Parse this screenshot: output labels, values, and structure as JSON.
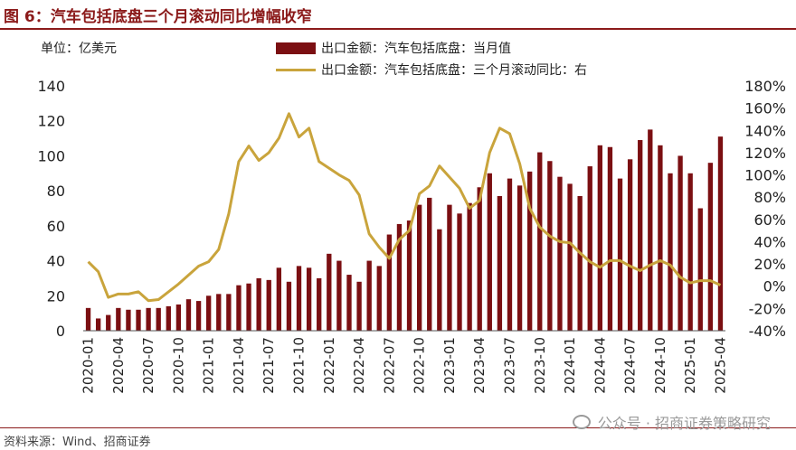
{
  "title": "图 6：汽车包括底盘三个月滚动同比增幅收窄",
  "unit_label": "单位：亿美元",
  "source": "资料来源：Wind、招商证券",
  "watermark": "公众号 · 招商证券策略研究",
  "colors": {
    "bar": "#7b0f12",
    "line": "#c9a43c",
    "accent": "#8b1a1a"
  },
  "chart_data": {
    "type": "bar",
    "series": [
      {
        "name": "出口金额：汽车包括底盘：当月值",
        "type": "bar",
        "axis": "left",
        "values": [
          13,
          7,
          9,
          13,
          12,
          12,
          13,
          13,
          14,
          15,
          18,
          17,
          20,
          21,
          21,
          26,
          27,
          30,
          29,
          36,
          28,
          37,
          36,
          30,
          44,
          40,
          32,
          28,
          40,
          37,
          55,
          61,
          63,
          72,
          76,
          58,
          72,
          67,
          73,
          82,
          90,
          77,
          87,
          83,
          91,
          102,
          97,
          88,
          84,
          77,
          94,
          106,
          105,
          87,
          98,
          109,
          115,
          106,
          90,
          100,
          90,
          70,
          96,
          111
        ]
      },
      {
        "name": "出口金额：汽车包括底盘：三个月滚动同比：右",
        "type": "line",
        "axis": "right",
        "values": [
          0.22,
          0.13,
          -0.1,
          -0.07,
          -0.07,
          -0.05,
          -0.13,
          -0.12,
          -0.05,
          0.02,
          0.1,
          0.18,
          0.22,
          0.33,
          0.65,
          1.12,
          1.26,
          1.13,
          1.2,
          1.33,
          1.55,
          1.34,
          1.42,
          1.12,
          1.06,
          1.0,
          0.95,
          0.82,
          0.47,
          0.35,
          0.25,
          0.42,
          0.5,
          0.83,
          0.9,
          1.08,
          0.98,
          0.88,
          0.7,
          0.77,
          1.2,
          1.42,
          1.37,
          1.1,
          0.7,
          0.53,
          0.45,
          0.4,
          0.39,
          0.3,
          0.22,
          0.17,
          0.23,
          0.23,
          0.18,
          0.14,
          0.19,
          0.23,
          0.19,
          0.08,
          0.03,
          0.05,
          0.05,
          0.01
        ]
      }
    ],
    "x_tick_labels": [
      "2020-01",
      "2020-04",
      "2020-07",
      "2020-10",
      "2021-01",
      "2021-04",
      "2021-07",
      "2021-10",
      "2022-01",
      "2022-04",
      "2022-07",
      "2022-10",
      "2023-01",
      "2023-04",
      "2023-07",
      "2023-10",
      "2024-01",
      "2024-04",
      "2024-07",
      "2024-10",
      "2025-01",
      "2025-04"
    ],
    "x_start": "2020-01",
    "x_end": "2025-04",
    "y_left": {
      "min": 0,
      "max": 140,
      "ticks": [
        "0",
        "20",
        "40",
        "60",
        "80",
        "100",
        "120",
        "140"
      ]
    },
    "y_right": {
      "min": -0.4,
      "max": 1.8,
      "ticks": [
        "-40%",
        "-20%",
        "0%",
        "20%",
        "40%",
        "60%",
        "80%",
        "100%",
        "120%",
        "140%",
        "160%",
        "180%"
      ]
    },
    "grid": false,
    "legend_position": "top-center"
  }
}
